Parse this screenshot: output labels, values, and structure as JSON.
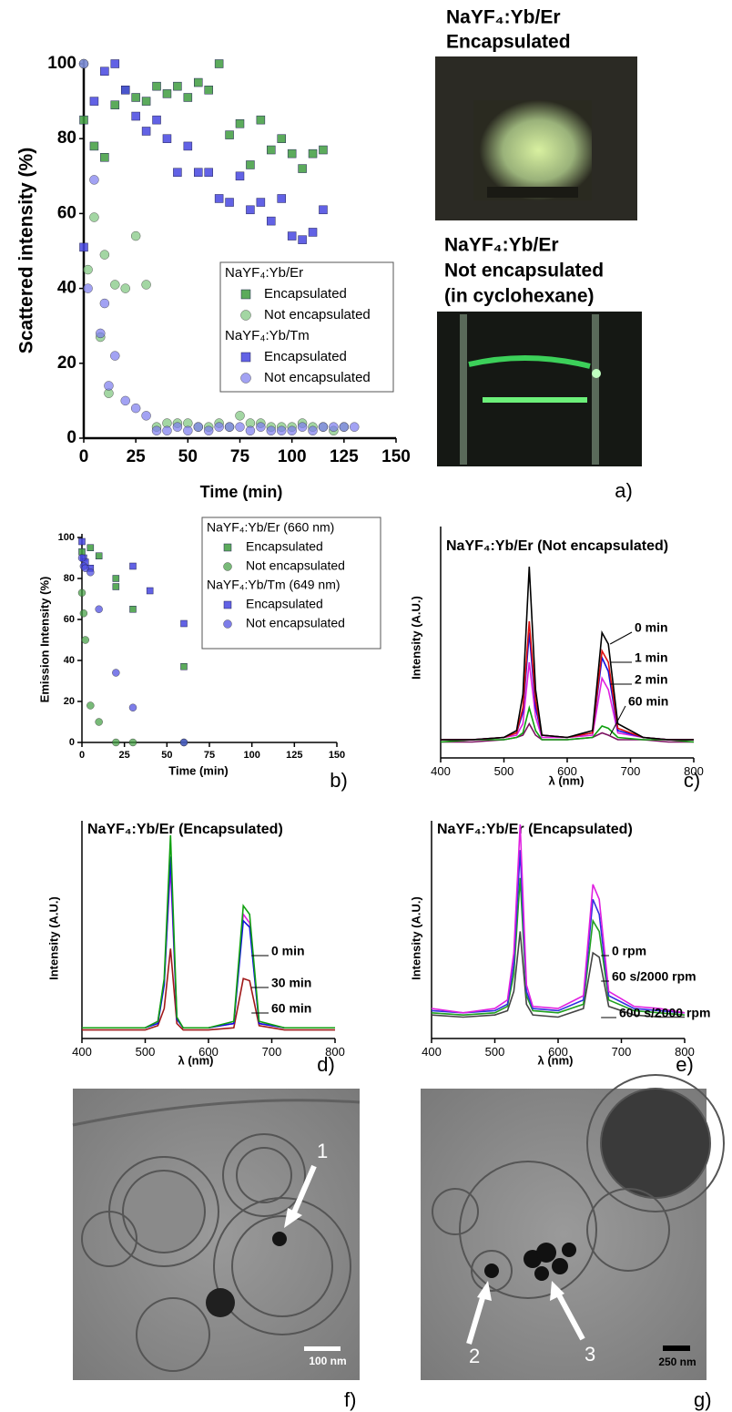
{
  "chart_data": [
    {
      "type": "scatter",
      "ylabel": "Scattered intensity (%)",
      "xlabel": "Time (min)",
      "panel": "a)",
      "xlim": [
        0,
        150
      ],
      "xticks": [
        0,
        25,
        50,
        75,
        100,
        125,
        150
      ],
      "ylim": [
        0,
        100
      ],
      "yticks": [
        0,
        20,
        40,
        60,
        80,
        100
      ],
      "groups": [
        {
          "name": "NaYF₄:Yb/Er",
          "series": [
            {
              "name": "Encapsulated",
              "marker": "square",
              "color": "#3f9c3f",
              "x": [
                0,
                5,
                10,
                15,
                20,
                25,
                30,
                35,
                40,
                45,
                50,
                55,
                60,
                65,
                70,
                75,
                80,
                85,
                90,
                95,
                100,
                105,
                110,
                115
              ],
              "values": [
                85,
                78,
                75,
                89,
                93,
                91,
                90,
                94,
                92,
                94,
                91,
                95,
                93,
                100,
                81,
                84,
                73,
                85,
                77,
                80,
                76,
                72,
                76,
                77
              ]
            },
            {
              "name": "Not encapsulated",
              "marker": "circle",
              "color": "#7cc47c",
              "x": [
                0,
                2,
                5,
                8,
                10,
                12,
                15,
                20,
                25,
                30,
                35,
                40,
                45,
                50,
                55,
                60,
                65,
                70,
                75,
                80,
                85,
                90,
                95,
                100,
                105,
                110,
                115,
                120,
                125
              ],
              "values": [
                100,
                45,
                59,
                27,
                49,
                12,
                41,
                40,
                54,
                41,
                3,
                4,
                4,
                4,
                3,
                3,
                4,
                3,
                6,
                4,
                4,
                3,
                3,
                3,
                4,
                3,
                3,
                2,
                3
              ]
            }
          ]
        },
        {
          "name": "NaYF₄:Yb/Tm",
          "series": [
            {
              "name": "Encapsulated",
              "marker": "square",
              "color": "#4646e0",
              "x": [
                0,
                5,
                10,
                15,
                20,
                25,
                30,
                35,
                40,
                45,
                50,
                55,
                60,
                65,
                70,
                75,
                80,
                85,
                90,
                95,
                100,
                105,
                110,
                115
              ],
              "values": [
                51,
                90,
                98,
                100,
                93,
                86,
                82,
                85,
                80,
                71,
                78,
                71,
                71,
                64,
                63,
                70,
                61,
                63,
                58,
                64,
                54,
                53,
                55,
                61
              ]
            },
            {
              "name": "Not encapsulated",
              "marker": "circle",
              "color": "#7b7bee",
              "x": [
                0,
                2,
                5,
                8,
                10,
                12,
                15,
                20,
                25,
                30,
                35,
                40,
                45,
                50,
                55,
                60,
                65,
                70,
                75,
                80,
                85,
                90,
                95,
                100,
                105,
                110,
                115,
                120,
                125,
                130
              ],
              "values": [
                100,
                40,
                69,
                28,
                36,
                14,
                22,
                10,
                8,
                6,
                2,
                2,
                3,
                2,
                3,
                2,
                3,
                3,
                3,
                2,
                3,
                2,
                2,
                2,
                3,
                2,
                3,
                3,
                3,
                3
              ]
            }
          ]
        }
      ]
    },
    {
      "type": "scatter",
      "ylabel": "Emission Intensity (%)",
      "xlabel": "Time (min)",
      "panel": "b)",
      "xlim": [
        0,
        150
      ],
      "xticks": [
        0,
        25,
        50,
        75,
        100,
        125,
        150
      ],
      "ylim": [
        0,
        100
      ],
      "yticks": [
        0,
        20,
        40,
        60,
        80,
        100
      ],
      "groups": [
        {
          "name": "NaYF₄:Yb/Er (660 nm)",
          "series": [
            {
              "name": "Encapsulated",
              "marker": "square",
              "color": "#3f9c3f",
              "x": [
                0,
                5,
                10,
                20,
                20,
                30,
                60
              ],
              "values": [
                93,
                95,
                91,
                80,
                76,
                65,
                37
              ]
            },
            {
              "name": "Not encapsulated",
              "marker": "circle",
              "color": "#3f9c3f",
              "x": [
                0,
                1,
                2,
                5,
                10,
                20,
                30,
                60
              ],
              "values": [
                73,
                63,
                50,
                18,
                10,
                0,
                0,
                0
              ]
            }
          ]
        },
        {
          "name": "NaYF₄:Yb/Tm (649 nm)",
          "series": [
            {
              "name": "Encapsulated",
              "marker": "square",
              "color": "#4646e0",
              "x": [
                0,
                1,
                2,
                5,
                30,
                40,
                60
              ],
              "values": [
                98,
                90,
                88,
                85,
                86,
                74,
                58
              ]
            },
            {
              "name": "Not encapsulated",
              "marker": "circle",
              "color": "#4646e0",
              "x": [
                0,
                1,
                2,
                5,
                10,
                20,
                30,
                60
              ],
              "values": [
                90,
                86,
                85,
                83,
                65,
                34,
                17,
                0
              ]
            }
          ]
        }
      ]
    },
    {
      "type": "line",
      "title": "NaYF₄:Yb/Er (Not encapsulated)",
      "ylabel": "Intensity (A.U.)",
      "xlabel": "λ (nm)",
      "panel": "c)",
      "xlim": [
        400,
        800
      ],
      "xticks": [
        400,
        500,
        600,
        700,
        800
      ],
      "ylim": [
        0,
        100
      ],
      "x": [
        400,
        450,
        500,
        520,
        530,
        540,
        550,
        560,
        600,
        640,
        655,
        665,
        680,
        720,
        760,
        800
      ],
      "series": [
        {
          "name": "0 min",
          "color": "#000000",
          "values": [
            8,
            8,
            9,
            12,
            28,
            84,
            30,
            10,
            9,
            12,
            55,
            50,
            15,
            9,
            8,
            8
          ]
        },
        {
          "name": "1 min",
          "color": "#e01010",
          "values": [
            8,
            8,
            9,
            11,
            22,
            60,
            25,
            10,
            9,
            11,
            47,
            42,
            13,
            9,
            8,
            8
          ]
        },
        {
          "name": "2 min",
          "color": "#1010e0",
          "values": [
            8,
            8,
            9,
            11,
            20,
            55,
            22,
            10,
            9,
            11,
            44,
            38,
            12,
            9,
            8,
            8
          ]
        },
        {
          "color": "#e020e0",
          "values": [
            8,
            8,
            9,
            10,
            15,
            42,
            18,
            9,
            9,
            10,
            35,
            30,
            11,
            9,
            8,
            8
          ]
        },
        {
          "color": "#10a010",
          "values": [
            7,
            8,
            8,
            9,
            11,
            22,
            12,
            8,
            8,
            9,
            14,
            13,
            9,
            8,
            8,
            7
          ]
        },
        {
          "name": "60 min",
          "color": "#7a1060",
          "values": [
            7,
            7,
            8,
            9,
            10,
            15,
            10,
            8,
            8,
            9,
            11,
            10,
            8,
            8,
            7,
            7
          ]
        }
      ]
    },
    {
      "type": "line",
      "title": "NaYF₄:Yb/Er (Encapsulated)",
      "ylabel": "Intensity (A.U.)",
      "xlabel": "λ (nm)",
      "panel": "d)",
      "xlim": [
        400,
        800
      ],
      "xticks": [
        400,
        500,
        600,
        700,
        800
      ],
      "ylim": [
        0,
        100
      ],
      "x": [
        400,
        450,
        500,
        520,
        530,
        540,
        550,
        560,
        600,
        640,
        655,
        665,
        680,
        720,
        760,
        800
      ],
      "series": [
        {
          "name": "0 min",
          "color": "#10a010",
          "values": [
            5,
            5,
            5,
            8,
            28,
            95,
            10,
            5,
            5,
            8,
            62,
            58,
            8,
            5,
            5,
            5
          ]
        },
        {
          "name": "30 min",
          "color": "#1010e0",
          "values": [
            5,
            5,
            5,
            7,
            25,
            85,
            9,
            5,
            5,
            7,
            55,
            52,
            7,
            5,
            5,
            5
          ]
        },
        {
          "color": "#e020e0",
          "values": [
            5,
            5,
            5,
            8,
            27,
            80,
            9,
            5,
            5,
            7,
            58,
            54,
            7,
            5,
            5,
            5
          ]
        },
        {
          "name": "60 min",
          "color": "#a01818",
          "values": [
            4,
            4,
            4,
            6,
            14,
            42,
            7,
            4,
            4,
            5,
            28,
            27,
            6,
            4,
            4,
            4
          ]
        }
      ]
    },
    {
      "type": "line",
      "title": "NaYF₄:Yb/Er (Encapsulated)",
      "ylabel": "Intensity (A.U.)",
      "xlabel": "λ (nm)",
      "panel": "e)",
      "xlim": [
        400,
        800
      ],
      "xticks": [
        400,
        500,
        600,
        700,
        800
      ],
      "ylim": [
        0,
        100
      ],
      "x": [
        400,
        450,
        500,
        520,
        530,
        540,
        550,
        560,
        600,
        640,
        655,
        665,
        680,
        720,
        760,
        800
      ],
      "series": [
        {
          "name": "0 rpm",
          "color": "#e020e0",
          "values": [
            14,
            12,
            14,
            18,
            40,
            100,
            25,
            15,
            14,
            20,
            72,
            65,
            22,
            15,
            14,
            12
          ]
        },
        {
          "name": "60 s/2000 rpm",
          "color": "#3030e0",
          "values": [
            13,
            12,
            13,
            16,
            35,
            88,
            22,
            14,
            13,
            18,
            65,
            58,
            20,
            14,
            13,
            12
          ]
        },
        {
          "color": "#20a020",
          "values": [
            12,
            11,
            12,
            15,
            30,
            75,
            20,
            13,
            12,
            16,
            55,
            50,
            18,
            13,
            12,
            11
          ]
        },
        {
          "name": "600 s/2000 rpm",
          "color": "#444444",
          "values": [
            11,
            10,
            11,
            13,
            22,
            50,
            16,
            11,
            10,
            14,
            40,
            38,
            15,
            11,
            10,
            10
          ]
        }
      ]
    }
  ],
  "photos": {
    "top": [
      "NaYF₄:Yb/Er",
      "Encapsulated"
    ],
    "bottom": [
      "NaYF₄:Yb/Er",
      "Not encapsulated",
      "(in cyclohexane)"
    ]
  },
  "tem": {
    "f": {
      "arrow": "1",
      "scale": "100 nm",
      "panel": "f)"
    },
    "g": {
      "arrows": [
        "2",
        "3"
      ],
      "scale": "250 nm",
      "panel": "g)"
    }
  }
}
